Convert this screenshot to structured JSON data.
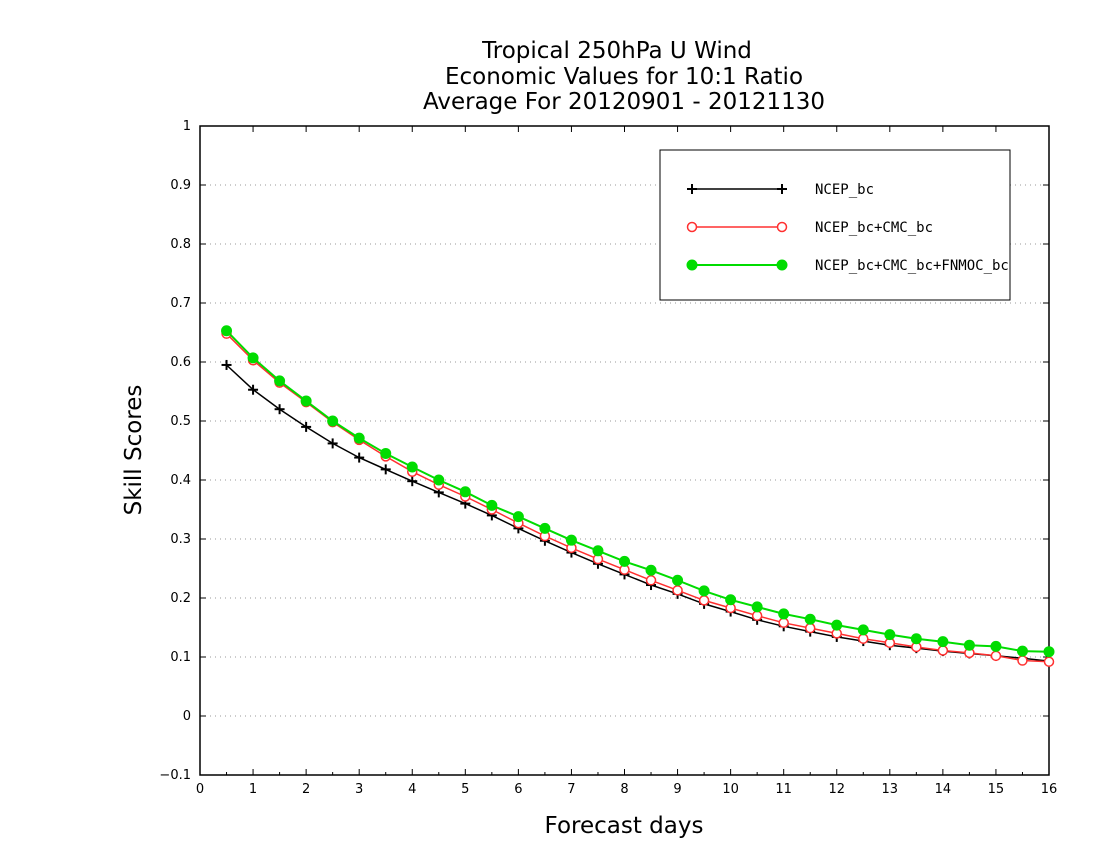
{
  "chart_data": {
    "type": "line",
    "title_lines": [
      "Tropical 250hPa U Wind",
      "Economic Values for 10:1 Ratio",
      "Average For 20120901 - 20121130"
    ],
    "xlabel": "Forecast days",
    "ylabel": "Skill Scores",
    "xlim": [
      0,
      16
    ],
    "ylim": [
      -0.1,
      1
    ],
    "x_ticks": [
      "0",
      "1",
      "2",
      "3",
      "4",
      "5",
      "6",
      "7",
      "8",
      "9",
      "10",
      "11",
      "12",
      "13",
      "14",
      "15",
      "16"
    ],
    "y_ticks": [
      "−0.1",
      "0",
      "0.1",
      "0.2",
      "0.3",
      "0.4",
      "0.5",
      "0.6",
      "0.7",
      "0.8",
      "0.9",
      "1"
    ],
    "grid": "horizontal dotted",
    "legend_position": "top-right",
    "x": [
      0.5,
      1,
      1.5,
      2,
      2.5,
      3,
      3.5,
      4,
      4.5,
      5,
      5.5,
      6,
      6.5,
      7,
      7.5,
      8,
      8.5,
      9,
      9.5,
      10,
      10.5,
      11,
      11.5,
      12,
      12.5,
      13,
      13.5,
      14,
      14.5,
      15,
      15.5,
      16
    ],
    "series": [
      {
        "name": "NCEP_bc",
        "color": "#000000",
        "marker": "plus",
        "values": [
          0.595,
          0.553,
          0.52,
          0.49,
          0.462,
          0.438,
          0.418,
          0.398,
          0.379,
          0.36,
          0.34,
          0.318,
          0.297,
          0.277,
          0.258,
          0.24,
          0.222,
          0.207,
          0.19,
          0.177,
          0.163,
          0.152,
          0.143,
          0.134,
          0.127,
          0.12,
          0.115,
          0.11,
          0.106,
          0.102,
          0.098,
          0.093
        ]
      },
      {
        "name": "NCEP_bc+CMC_bc",
        "color": "#ff3030",
        "marker": "open-circle",
        "values": [
          0.648,
          0.603,
          0.565,
          0.532,
          0.498,
          0.468,
          0.44,
          0.414,
          0.392,
          0.372,
          0.35,
          0.327,
          0.305,
          0.285,
          0.266,
          0.248,
          0.23,
          0.213,
          0.196,
          0.183,
          0.17,
          0.158,
          0.149,
          0.14,
          0.131,
          0.124,
          0.117,
          0.111,
          0.107,
          0.102,
          0.094,
          0.092
        ]
      },
      {
        "name": "NCEP_bc+CMC_bc+FNMOC_bc",
        "color": "#00dc00",
        "marker": "filled-circle",
        "values": [
          0.653,
          0.607,
          0.568,
          0.534,
          0.5,
          0.471,
          0.445,
          0.422,
          0.4,
          0.38,
          0.357,
          0.338,
          0.318,
          0.298,
          0.28,
          0.262,
          0.247,
          0.23,
          0.212,
          0.197,
          0.185,
          0.173,
          0.164,
          0.154,
          0.146,
          0.138,
          0.131,
          0.126,
          0.12,
          0.118,
          0.11,
          0.109
        ]
      }
    ]
  }
}
